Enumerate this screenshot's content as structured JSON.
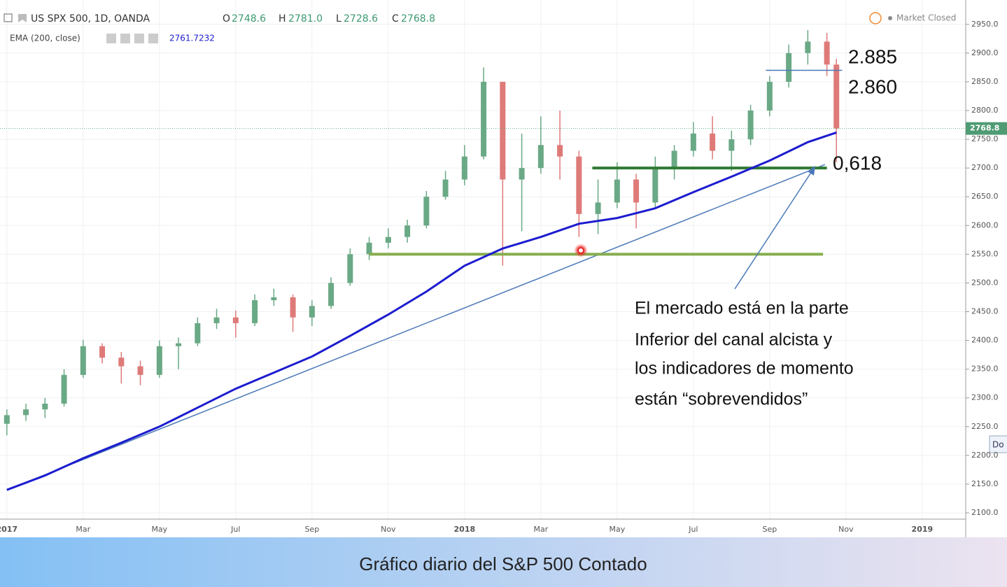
{
  "chart_data": {
    "type": "candlestick",
    "header": {
      "symbol": "US SPX 500, 1D, OANDA",
      "o_label": "O",
      "open": {
        "value": 2748.6,
        "label": "2748.6"
      },
      "h_label": "H",
      "high": {
        "value": 2781.0,
        "label": "2781.0"
      },
      "l_label": "L",
      "low": {
        "value": 2728.6,
        "label": "2728.6"
      },
      "c_label": "C",
      "status": "Market Closed",
      "side_button": "Do"
    },
    "x": [
      0,
      0.5,
      1,
      1.5,
      2,
      2.5,
      3,
      3.5,
      4,
      4.5,
      5,
      5.5,
      6,
      6.5,
      7,
      7.5,
      8,
      8.5,
      9,
      9.5,
      10,
      10.5,
      11,
      11.5,
      12,
      12.5,
      13,
      13.5,
      14,
      14.5,
      15,
      15.5,
      16,
      16.5,
      17,
      17.5,
      18,
      18.5,
      19,
      19.5,
      20,
      20.5,
      21,
      21.5,
      21.75
    ],
    "candles": {
      "open": [
        2255,
        2270,
        2280,
        2290,
        2340,
        2390,
        2370,
        2355,
        2340,
        2390,
        2395,
        2430,
        2440,
        2430,
        2470,
        2475,
        2440,
        2460,
        2500,
        2550,
        2570,
        2580,
        2600,
        2650,
        2680,
        2720,
        2850,
        2680,
        2700,
        2740,
        2720,
        2620,
        2640,
        2680,
        2640,
        2700,
        2730,
        2760,
        2730,
        2750,
        2800,
        2850,
        2900,
        2920,
        2880
      ],
      "high": [
        2280,
        2290,
        2300,
        2350,
        2401,
        2395,
        2380,
        2365,
        2400,
        2405,
        2440,
        2455,
        2452,
        2480,
        2490,
        2480,
        2470,
        2510,
        2560,
        2580,
        2595,
        2610,
        2660,
        2695,
        2740,
        2875,
        2850,
        2760,
        2790,
        2800,
        2730,
        2680,
        2710,
        2690,
        2720,
        2740,
        2780,
        2790,
        2765,
        2810,
        2860,
        2915,
        2940,
        2935,
        2890
      ],
      "low": [
        2235,
        2260,
        2265,
        2285,
        2335,
        2360,
        2325,
        2322,
        2335,
        2350,
        2390,
        2420,
        2405,
        2425,
        2460,
        2415,
        2425,
        2455,
        2495,
        2540,
        2560,
        2570,
        2595,
        2645,
        2670,
        2715,
        2530,
        2590,
        2690,
        2680,
        2580,
        2585,
        2630,
        2595,
        2630,
        2680,
        2720,
        2715,
        2695,
        2740,
        2790,
        2840,
        2880,
        2860,
        2710
      ],
      "close": [
        2270,
        2280,
        2290,
        2340,
        2390,
        2370,
        2355,
        2340,
        2390,
        2395,
        2430,
        2440,
        2430,
        2470,
        2475,
        2440,
        2460,
        2500,
        2550,
        2570,
        2580,
        2600,
        2650,
        2680,
        2720,
        2850,
        2680,
        2700,
        2740,
        2720,
        2620,
        2640,
        2680,
        2640,
        2700,
        2730,
        2760,
        2730,
        2750,
        2800,
        2850,
        2900,
        2920,
        2880,
        2768.8
      ]
    },
    "up_color": "#6aa985",
    "down_color": "#de7a78",
    "ema": {
      "name": "EMA (200, close)",
      "color": "#1c1ccf",
      "x": [
        0,
        1,
        2,
        3,
        4,
        5,
        6,
        7,
        8,
        9,
        10,
        11,
        12,
        13,
        14,
        15,
        16,
        17,
        18,
        19,
        20,
        21,
        21.75
      ],
      "values": [
        2140,
        2165,
        2195,
        2222,
        2250,
        2283,
        2316,
        2344,
        2372,
        2408,
        2445,
        2485,
        2530,
        2560,
        2580,
        2603,
        2613,
        2630,
        2658,
        2685,
        2713,
        2745,
        2761.7232
      ]
    },
    "trendline": {
      "x": [
        0,
        21.45
      ],
      "values": [
        2140,
        2706
      ],
      "color": "#4a78b8"
    },
    "levels": [
      {
        "value": 2550,
        "x": [
          9.5,
          21.4
        ],
        "color": "#86ad4e"
      },
      {
        "value": 2700,
        "x": [
          15.35,
          21.5
        ],
        "color": "#2f7a33"
      },
      {
        "value": 2870,
        "x": [
          19.9,
          21.9
        ],
        "color": "#4a78b8"
      }
    ],
    "annotations": [
      "2.885",
      "2.860",
      "0,618"
    ],
    "note": [
      "El mercado está en la parte",
      "Inferior del canal alcista y",
      "los indicadores de momento",
      "están “sobrevendidos”"
    ],
    "caption": "Gráfico diario del S&P 500 Contado",
    "xlim": [
      -0.18,
      25.14
    ],
    "xticks": [
      {
        "value": 0,
        "label": "2017"
      },
      {
        "value": 2,
        "label": "Mar"
      },
      {
        "value": 4,
        "label": "May"
      },
      {
        "value": 6,
        "label": "Jul"
      },
      {
        "value": 8,
        "label": "Sep"
      },
      {
        "value": 10,
        "label": "Nov"
      },
      {
        "value": 12,
        "label": "2018"
      },
      {
        "value": 14,
        "label": "Mar"
      },
      {
        "value": 16,
        "label": "May"
      },
      {
        "value": 18,
        "label": "Jul"
      },
      {
        "value": 20,
        "label": "Sep"
      },
      {
        "value": 22,
        "label": "Nov"
      },
      {
        "value": 24,
        "label": "2019"
      }
    ],
    "ylim": [
      2091.5,
      2968
    ],
    "yticks": [
      {
        "value": 2100,
        "label": "2100.0"
      },
      {
        "value": 2150,
        "label": "2150.0"
      },
      {
        "value": 2200,
        "label": "2200.0"
      },
      {
        "value": 2250,
        "label": "2250.0"
      },
      {
        "value": 2300,
        "label": "2300.0"
      },
      {
        "value": 2350,
        "label": "2350.0"
      },
      {
        "value": 2400,
        "label": "2400.0"
      },
      {
        "value": 2450,
        "label": "2450.0"
      },
      {
        "value": 2500,
        "label": "2500.0"
      },
      {
        "value": 2550,
        "label": "2550.0"
      },
      {
        "value": 2600,
        "label": "2600.0"
      },
      {
        "value": 2650,
        "label": "2650.0"
      },
      {
        "value": 2700,
        "label": "2700.0"
      },
      {
        "value": 2750,
        "label": "2750.0"
      },
      {
        "value": 2800,
        "label": "2800.0"
      },
      {
        "value": 2850,
        "label": "2850.0"
      },
      {
        "value": 2900,
        "label": "2900.0"
      },
      {
        "value": 2950,
        "label": "2950.0"
      }
    ],
    "grid": true
  }
}
